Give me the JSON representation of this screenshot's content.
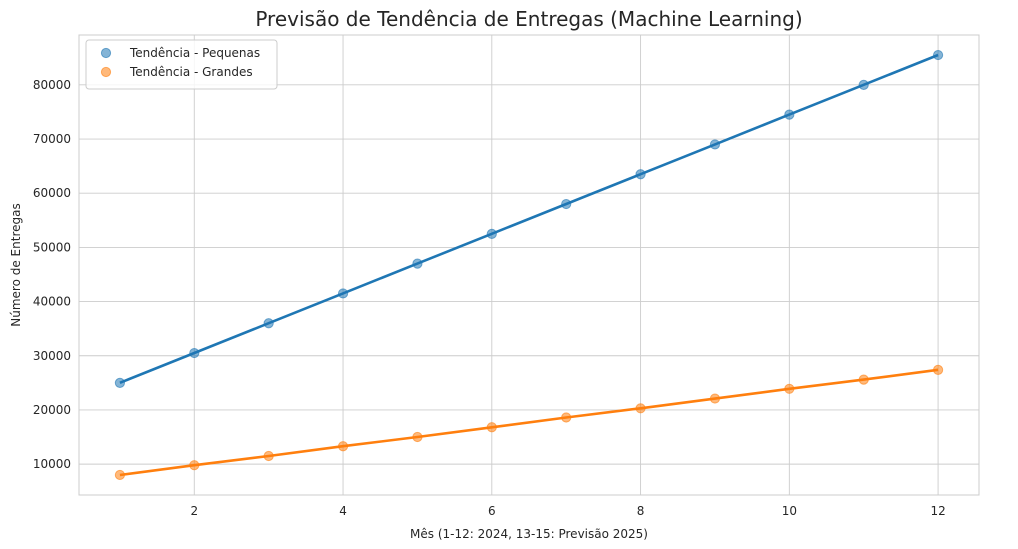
{
  "chart_data": {
    "type": "scatter",
    "title": "Previsão de Tendência de Entregas (Machine Learning)",
    "xlabel": "Mês (1-12: 2024, 13-15: Previsão 2025)",
    "ylabel": "Número de Entregas",
    "xlim": [
      0.45,
      12.55
    ],
    "ylim": [
      4300,
      89200
    ],
    "xticks": [
      2,
      4,
      6,
      8,
      10,
      12
    ],
    "yticks": [
      10000,
      20000,
      30000,
      40000,
      50000,
      60000,
      70000,
      80000
    ],
    "grid": true,
    "legend_position": "top-left",
    "x": [
      1,
      2,
      3,
      4,
      5,
      6,
      7,
      8,
      9,
      10,
      11,
      12
    ],
    "series": [
      {
        "name": "Tendência - Pequenas",
        "color": "#1f77b4",
        "values": [
          25000,
          30500,
          36000,
          41500,
          47000,
          52500,
          58000,
          63500,
          69000,
          74500,
          80000,
          85500
        ]
      },
      {
        "name": "Tendência - Grandes",
        "color": "#ff7f0e",
        "values": [
          8000,
          9800,
          11500,
          13300,
          15000,
          16800,
          18600,
          20300,
          22100,
          23900,
          25600,
          27400
        ]
      }
    ]
  }
}
